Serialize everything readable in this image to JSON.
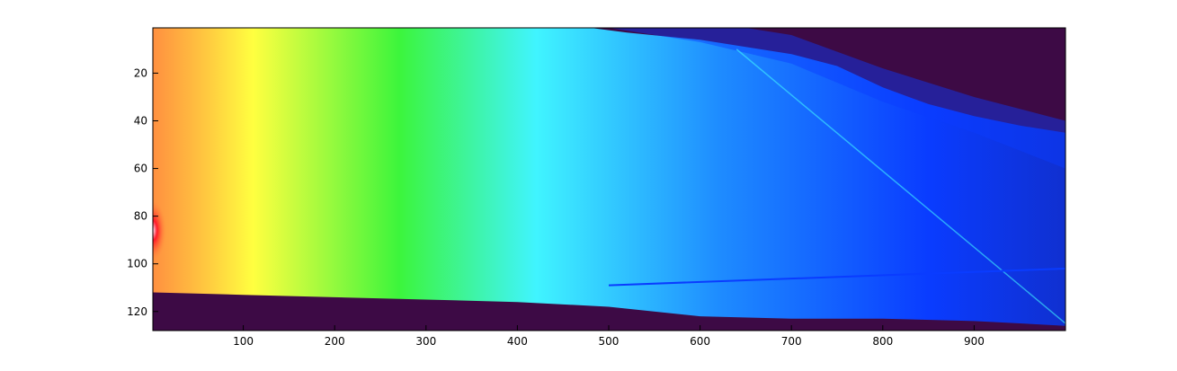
{
  "chart_data": {
    "type": "heatmap",
    "title": "",
    "xlabel": "",
    "ylabel": "",
    "xlim": [
      1,
      1000
    ],
    "ylim": [
      1,
      128
    ],
    "y_reversed": true,
    "grid": false,
    "legend": "none",
    "colormap": "jet-like (dark purple background, blue → cyan → green → yellow → red → pink)",
    "x_ticks": [
      100,
      200,
      300,
      400,
      500,
      600,
      700,
      800,
      900
    ],
    "y_ticks": [
      20,
      40,
      60,
      80,
      100,
      120
    ],
    "x_tick_labels": [
      "100",
      "200",
      "300",
      "400",
      "500",
      "600",
      "700",
      "800",
      "900"
    ],
    "y_tick_labels": [
      "20",
      "40",
      "60",
      "80",
      "100",
      "120"
    ],
    "colors": {
      "background": "#3d0a45",
      "low": "#0a3cff",
      "cyan": "#40f4ff",
      "green": "#3cf53c",
      "yellow": "#ffff40",
      "orange": "#ff9040",
      "red": "#ff1428",
      "peak": "#fff0ff"
    }
  }
}
